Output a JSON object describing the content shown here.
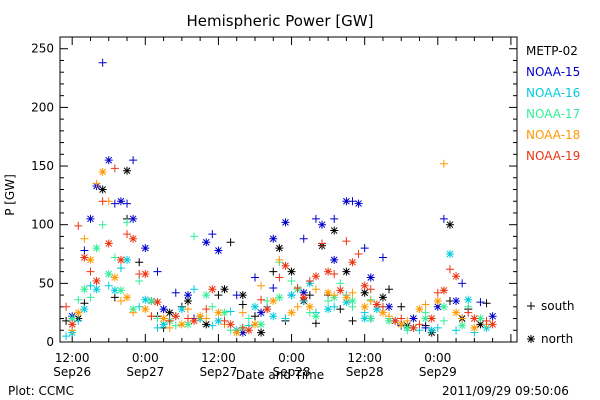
{
  "chart_data": {
    "type": "scatter",
    "title": "Hemispheric Power [GW]",
    "xlabel": "Date and Time",
    "ylabel": "P [GW]",
    "x_unit": "hours after 2011-09-26 00:00",
    "xlim": [
      10,
      85
    ],
    "ylim": [
      0,
      260
    ],
    "y_ticks": [
      0,
      50,
      100,
      150,
      200,
      250
    ],
    "x_ticks": [
      {
        "x": 12,
        "line1": "12:00",
        "line2": "Sep26"
      },
      {
        "x": 24,
        "line1": "0:00",
        "line2": "Sep27"
      },
      {
        "x": 36,
        "line1": "12:00",
        "line2": "Sep27"
      },
      {
        "x": 48,
        "line1": "0:00",
        "line2": "Sep28"
      },
      {
        "x": 60,
        "line1": "12:00",
        "line2": "Sep28"
      },
      {
        "x": 72,
        "line1": "0:00",
        "line2": "Sep29"
      }
    ],
    "legend_position": "right",
    "markers": {
      "south": "+",
      "north": "*"
    },
    "series": [
      {
        "name": "METP-02",
        "color": "#000000",
        "south": [
          [
            11,
            18
          ],
          [
            14,
            33
          ],
          [
            19,
            38
          ],
          [
            21,
            105
          ],
          [
            23,
            68
          ],
          [
            26,
            22
          ],
          [
            27,
            12
          ],
          [
            30,
            30
          ],
          [
            33,
            20
          ],
          [
            36,
            40
          ],
          [
            38,
            85
          ],
          [
            40,
            32
          ],
          [
            42,
            22
          ],
          [
            45,
            60
          ],
          [
            47,
            18
          ],
          [
            51,
            40
          ],
          [
            52,
            16
          ],
          [
            54,
            40
          ],
          [
            56,
            28
          ],
          [
            58,
            18
          ],
          [
            61,
            20
          ],
          [
            64,
            45
          ],
          [
            66,
            30
          ],
          [
            70,
            14
          ],
          [
            74,
            35
          ],
          [
            77,
            28
          ],
          [
            80,
            33
          ]
        ],
        "north": [
          [
            13,
            20
          ],
          [
            17,
            130
          ],
          [
            21,
            146
          ],
          [
            25,
            35
          ],
          [
            28,
            25
          ],
          [
            31,
            35
          ],
          [
            34,
            15
          ],
          [
            37,
            45
          ],
          [
            40,
            40
          ],
          [
            43,
            8
          ],
          [
            46,
            80
          ],
          [
            48,
            60
          ],
          [
            50,
            35
          ],
          [
            53,
            82
          ],
          [
            55,
            95
          ],
          [
            57,
            60
          ],
          [
            60,
            42
          ],
          [
            63,
            38
          ],
          [
            67,
            14
          ],
          [
            71,
            8
          ],
          [
            74,
            100
          ],
          [
            76,
            20
          ],
          [
            79,
            15
          ]
        ]
      },
      {
        "name": "NOAA-15",
        "color": "#0000cc",
        "south": [
          [
            14,
            78
          ],
          [
            17,
            238
          ],
          [
            19,
            118
          ],
          [
            21,
            118
          ],
          [
            22,
            155
          ],
          [
            26,
            60
          ],
          [
            29,
            42
          ],
          [
            32,
            20
          ],
          [
            35,
            92
          ],
          [
            39,
            40
          ],
          [
            42,
            55
          ],
          [
            45,
            46
          ],
          [
            48,
            40
          ],
          [
            50,
            88
          ],
          [
            52,
            105
          ],
          [
            55,
            105
          ],
          [
            58,
            120
          ],
          [
            60,
            80
          ],
          [
            63,
            72
          ],
          [
            66,
            14
          ],
          [
            70,
            12
          ],
          [
            73,
            105
          ],
          [
            76,
            50
          ],
          [
            79,
            34
          ]
        ],
        "north": [
          [
            12,
            22
          ],
          [
            15,
            105
          ],
          [
            16,
            133
          ],
          [
            18,
            155
          ],
          [
            20,
            120
          ],
          [
            22,
            105
          ],
          [
            24,
            80
          ],
          [
            27,
            28
          ],
          [
            31,
            40
          ],
          [
            34,
            85
          ],
          [
            36,
            78
          ],
          [
            40,
            8
          ],
          [
            43,
            25
          ],
          [
            45,
            88
          ],
          [
            47,
            102
          ],
          [
            50,
            42
          ],
          [
            53,
            100
          ],
          [
            55,
            70
          ],
          [
            57,
            120
          ],
          [
            59,
            118
          ],
          [
            61,
            55
          ],
          [
            64,
            30
          ],
          [
            68,
            20
          ],
          [
            72,
            30
          ],
          [
            75,
            35
          ],
          [
            81,
            22
          ]
        ]
      },
      {
        "name": "NOAA-16",
        "color": "#00ccdd",
        "south": [
          [
            11,
            5
          ],
          [
            13,
            18
          ],
          [
            15,
            48
          ],
          [
            18,
            48
          ],
          [
            20,
            63
          ],
          [
            23,
            30
          ],
          [
            26,
            12
          ],
          [
            29,
            22
          ],
          [
            32,
            45
          ],
          [
            35,
            14
          ],
          [
            38,
            26
          ],
          [
            41,
            14
          ],
          [
            44,
            30
          ],
          [
            47,
            20
          ],
          [
            50,
            35
          ],
          [
            52,
            25
          ],
          [
            55,
            30
          ],
          [
            57,
            40
          ],
          [
            60,
            25
          ],
          [
            63,
            30
          ],
          [
            66,
            15
          ],
          [
            69,
            10
          ],
          [
            72,
            12
          ],
          [
            75,
            10
          ],
          [
            78,
            8
          ]
        ],
        "north": [
          [
            12,
            8
          ],
          [
            14,
            28
          ],
          [
            16,
            45
          ],
          [
            19,
            44
          ],
          [
            21,
            70
          ],
          [
            24,
            36
          ],
          [
            27,
            15
          ],
          [
            30,
            28
          ],
          [
            33,
            20
          ],
          [
            36,
            18
          ],
          [
            39,
            10
          ],
          [
            42,
            30
          ],
          [
            45,
            22
          ],
          [
            48,
            40
          ],
          [
            51,
            50
          ],
          [
            54,
            28
          ],
          [
            57,
            34
          ],
          [
            60,
            20
          ],
          [
            62,
            28
          ],
          [
            65,
            18
          ],
          [
            68,
            12
          ],
          [
            71,
            10
          ],
          [
            74,
            75
          ],
          [
            77,
            36
          ],
          [
            80,
            12
          ]
        ]
      },
      {
        "name": "NOAA-17",
        "color": "#33ee99",
        "south": [
          [
            13,
            36
          ],
          [
            15,
            38
          ],
          [
            17,
            100
          ],
          [
            19,
            72
          ],
          [
            21,
            102
          ],
          [
            23,
            52
          ],
          [
            26,
            20
          ],
          [
            29,
            14
          ],
          [
            32,
            90
          ],
          [
            35,
            30
          ],
          [
            38,
            10
          ],
          [
            41,
            20
          ],
          [
            44,
            35
          ],
          [
            46,
            68
          ],
          [
            48,
            52
          ],
          [
            51,
            25
          ],
          [
            54,
            35
          ],
          [
            56,
            50
          ],
          [
            58,
            30
          ],
          [
            61,
            36
          ],
          [
            64,
            20
          ],
          [
            67,
            10
          ],
          [
            70,
            25
          ],
          [
            73,
            18
          ],
          [
            77,
            30
          ]
        ],
        "north": [
          [
            12,
            20
          ],
          [
            14,
            45
          ],
          [
            16,
            80
          ],
          [
            18,
            58
          ],
          [
            20,
            44
          ],
          [
            22,
            28
          ],
          [
            25,
            35
          ],
          [
            28,
            18
          ],
          [
            31,
            15
          ],
          [
            34,
            40
          ],
          [
            37,
            25
          ],
          [
            40,
            12
          ],
          [
            43,
            15
          ],
          [
            46,
            38
          ],
          [
            49,
            45
          ],
          [
            52,
            22
          ],
          [
            55,
            38
          ],
          [
            58,
            35
          ],
          [
            61,
            20
          ],
          [
            64,
            18
          ],
          [
            67,
            12
          ],
          [
            70,
            20
          ],
          [
            73,
            30
          ],
          [
            76,
            14
          ],
          [
            79,
            20
          ]
        ]
      },
      {
        "name": "NOAA-18",
        "color": "#ff9900",
        "south": [
          [
            12,
            10
          ],
          [
            14,
            88
          ],
          [
            16,
            135
          ],
          [
            18,
            120
          ],
          [
            20,
            35
          ],
          [
            22,
            25
          ],
          [
            25,
            22
          ],
          [
            28,
            12
          ],
          [
            31,
            28
          ],
          [
            34,
            20
          ],
          [
            37,
            15
          ],
          [
            40,
            25
          ],
          [
            43,
            48
          ],
          [
            46,
            70
          ],
          [
            49,
            30
          ],
          [
            52,
            45
          ],
          [
            55,
            40
          ],
          [
            58,
            42
          ],
          [
            61,
            35
          ],
          [
            64,
            22
          ],
          [
            67,
            18
          ],
          [
            70,
            32
          ],
          [
            73,
            152
          ],
          [
            76,
            20
          ],
          [
            80,
            15
          ]
        ],
        "north": [
          [
            13,
            25
          ],
          [
            15,
            70
          ],
          [
            17,
            145
          ],
          [
            19,
            55
          ],
          [
            21,
            38
          ],
          [
            24,
            28
          ],
          [
            27,
            20
          ],
          [
            30,
            15
          ],
          [
            33,
            22
          ],
          [
            36,
            25
          ],
          [
            39,
            8
          ],
          [
            42,
            15
          ],
          [
            45,
            35
          ],
          [
            48,
            25
          ],
          [
            51,
            30
          ],
          [
            54,
            42
          ],
          [
            57,
            38
          ],
          [
            60,
            30
          ],
          [
            63,
            25
          ],
          [
            66,
            15
          ],
          [
            69,
            28
          ],
          [
            72,
            35
          ],
          [
            75,
            25
          ],
          [
            78,
            12
          ]
        ]
      },
      {
        "name": "NOAA-19",
        "color": "#ee3311",
        "south": [
          [
            11,
            30
          ],
          [
            13,
            99
          ],
          [
            15,
            60
          ],
          [
            17,
            120
          ],
          [
            19,
            148
          ],
          [
            21,
            92
          ],
          [
            23,
            58
          ],
          [
            25,
            22
          ],
          [
            28,
            18
          ],
          [
            31,
            20
          ],
          [
            34,
            28
          ],
          [
            37,
            18
          ],
          [
            40,
            12
          ],
          [
            43,
            36
          ],
          [
            46,
            55
          ],
          [
            49,
            46
          ],
          [
            51,
            52
          ],
          [
            53,
            84
          ],
          [
            55,
            58
          ],
          [
            57,
            86
          ],
          [
            59,
            75
          ],
          [
            61,
            45
          ],
          [
            63,
            30
          ],
          [
            66,
            20
          ],
          [
            69,
            15
          ],
          [
            72,
            42
          ],
          [
            74,
            62
          ],
          [
            77,
            25
          ],
          [
            80,
            18
          ]
        ],
        "north": [
          [
            12,
            15
          ],
          [
            14,
            72
          ],
          [
            16,
            52
          ],
          [
            18,
            84
          ],
          [
            20,
            70
          ],
          [
            22,
            88
          ],
          [
            24,
            58
          ],
          [
            26,
            34
          ],
          [
            29,
            22
          ],
          [
            32,
            18
          ],
          [
            35,
            45
          ],
          [
            38,
            15
          ],
          [
            41,
            10
          ],
          [
            44,
            28
          ],
          [
            47,
            65
          ],
          [
            50,
            38
          ],
          [
            52,
            56
          ],
          [
            54,
            60
          ],
          [
            56,
            44
          ],
          [
            58,
            68
          ],
          [
            60,
            48
          ],
          [
            62,
            32
          ],
          [
            65,
            18
          ],
          [
            68,
            12
          ],
          [
            71,
            20
          ],
          [
            73,
            44
          ],
          [
            75,
            56
          ],
          [
            78,
            20
          ],
          [
            81,
            15
          ]
        ]
      }
    ]
  },
  "footer": {
    "plot_source": "Plot: CCMC",
    "timestamp": "2011/09/29 09:50:06"
  }
}
